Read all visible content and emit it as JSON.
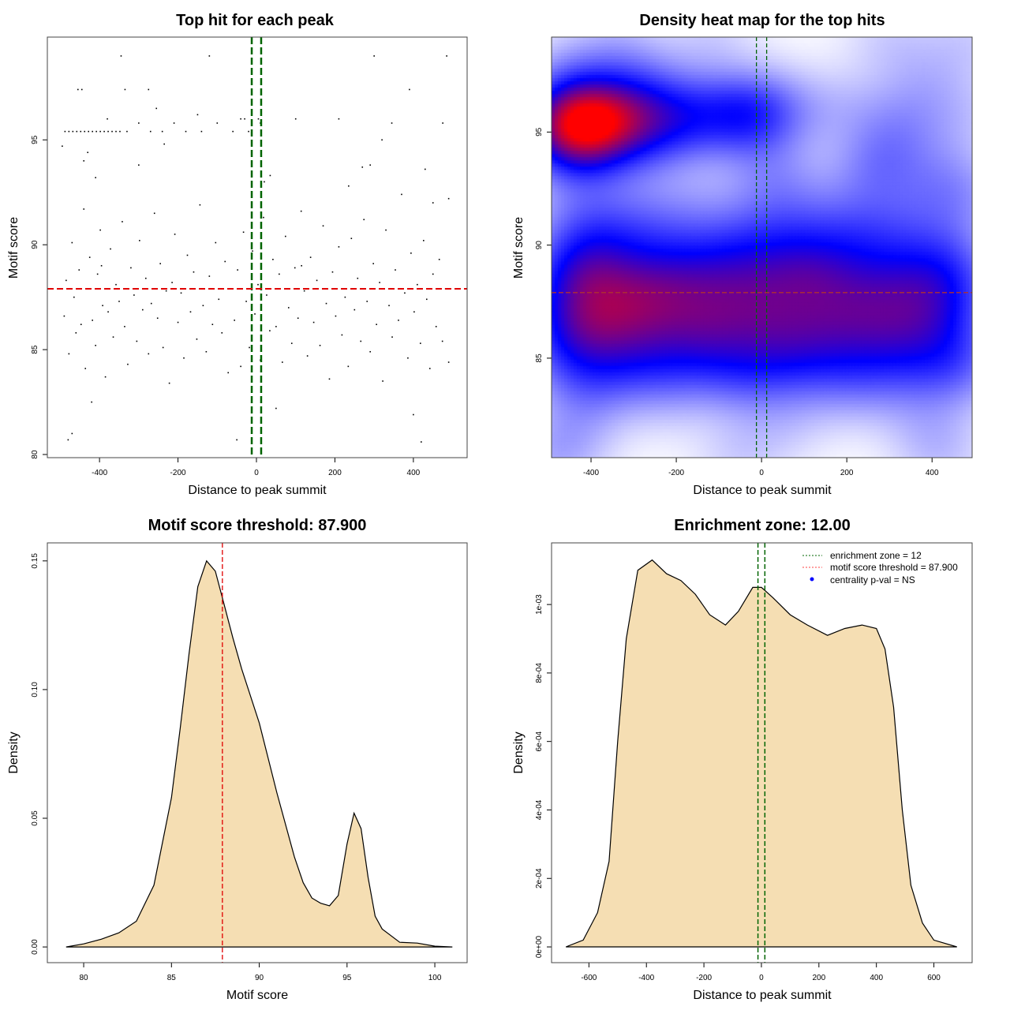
{
  "chart_data": [
    {
      "type": "scatter",
      "title": "Top hit for each peak",
      "xlabel": "Distance to peak summit",
      "ylabel": "Motif score",
      "xlim": [
        -533,
        537
      ],
      "ylim": [
        79.85,
        99.9
      ],
      "xticks": [
        -400,
        -200,
        0,
        200,
        400
      ],
      "yticks": [
        80,
        85,
        90,
        95
      ],
      "enrichment_zone": 12,
      "threshold": 87.9,
      "colors": {
        "points": "#000000",
        "zone": "#006400",
        "threshold": "#e00000"
      },
      "points": [
        [
          -488,
          95.4
        ],
        [
          -478,
          95.4
        ],
        [
          -468,
          95.4
        ],
        [
          -458,
          95.4
        ],
        [
          -448,
          95.4
        ],
        [
          -438,
          95.4
        ],
        [
          -428,
          95.4
        ],
        [
          -418,
          95.4
        ],
        [
          -408,
          95.4
        ],
        [
          -398,
          95.4
        ],
        [
          -388,
          95.4
        ],
        [
          -378,
          95.4
        ],
        [
          -368,
          95.4
        ],
        [
          -358,
          95.4
        ],
        [
          -348,
          95.4
        ],
        [
          -330,
          95.4
        ],
        [
          -300,
          95.8
        ],
        [
          -270,
          95.4
        ],
        [
          -240,
          95.4
        ],
        [
          -210,
          95.8
        ],
        [
          -180,
          95.4
        ],
        [
          -140,
          95.4
        ],
        [
          -100,
          95.8
        ],
        [
          -60,
          95.4
        ],
        [
          -20,
          95.4
        ],
        [
          10,
          95.8
        ],
        [
          -495,
          94.7
        ],
        [
          -480,
          80.7
        ],
        [
          -470,
          81
        ],
        [
          -455,
          97.4
        ],
        [
          -445,
          97.4
        ],
        [
          -440,
          94
        ],
        [
          -430,
          94.4
        ],
        [
          -420,
          82.5
        ],
        [
          -410,
          93.2
        ],
        [
          -395,
          89
        ],
        [
          -380,
          96
        ],
        [
          -345,
          99
        ],
        [
          -335,
          97.4
        ],
        [
          -300,
          93.8
        ],
        [
          -275,
          97.4
        ],
        [
          -255,
          96.5
        ],
        [
          -235,
          94.8
        ],
        [
          -150,
          96.2
        ],
        [
          -120,
          99
        ],
        [
          -50,
          80.7
        ],
        [
          -40,
          96
        ],
        [
          -30,
          96
        ],
        [
          5,
          96
        ],
        [
          20,
          93
        ],
        [
          35,
          93.3
        ],
        [
          50,
          82.2
        ],
        [
          100,
          96
        ],
        [
          115,
          89
        ],
        [
          210,
          96
        ],
        [
          235,
          92.8
        ],
        [
          270,
          93.7
        ],
        [
          290,
          93.8
        ],
        [
          300,
          99
        ],
        [
          320,
          95
        ],
        [
          345,
          95.8
        ],
        [
          390,
          97.4
        ],
        [
          400,
          81.9
        ],
        [
          420,
          80.6
        ],
        [
          430,
          93.6
        ],
        [
          450,
          92
        ],
        [
          475,
          95.8
        ],
        [
          485,
          99
        ],
        [
          490,
          92.2
        ],
        [
          -490,
          86.6
        ],
        [
          -485,
          88.3
        ],
        [
          -478,
          84.8
        ],
        [
          -470,
          90.1
        ],
        [
          -465,
          87.5
        ],
        [
          -460,
          85.8
        ],
        [
          -452,
          88.8
        ],
        [
          -447,
          86.2
        ],
        [
          -440,
          91.7
        ],
        [
          -436,
          84.1
        ],
        [
          -430,
          87.9
        ],
        [
          -425,
          89.4
        ],
        [
          -418,
          86.4
        ],
        [
          -410,
          85.2
        ],
        [
          -405,
          88.6
        ],
        [
          -398,
          90.7
        ],
        [
          -392,
          87.1
        ],
        [
          -385,
          83.7
        ],
        [
          -378,
          86.8
        ],
        [
          -372,
          89.8
        ],
        [
          -365,
          85.6
        ],
        [
          -358,
          88.1
        ],
        [
          -350,
          87.3
        ],
        [
          -342,
          91.1
        ],
        [
          -336,
          86.1
        ],
        [
          -328,
          84.3
        ],
        [
          -320,
          88.9
        ],
        [
          -312,
          87.6
        ],
        [
          -305,
          85.4
        ],
        [
          -298,
          90.2
        ],
        [
          -290,
          86.9
        ],
        [
          -282,
          88.4
        ],
        [
          -275,
          84.8
        ],
        [
          -268,
          87.2
        ],
        [
          -260,
          91.5
        ],
        [
          -252,
          86.5
        ],
        [
          -245,
          89.1
        ],
        [
          -238,
          85.1
        ],
        [
          -230,
          87.8
        ],
        [
          -222,
          83.4
        ],
        [
          -215,
          88.2
        ],
        [
          -208,
          90.5
        ],
        [
          -200,
          86.3
        ],
        [
          -192,
          87.7
        ],
        [
          -185,
          84.6
        ],
        [
          -176,
          89.5
        ],
        [
          -168,
          86.8
        ],
        [
          -160,
          88.7
        ],
        [
          -152,
          85.5
        ],
        [
          -144,
          91.9
        ],
        [
          -136,
          87.1
        ],
        [
          -128,
          84.9
        ],
        [
          -120,
          88.5
        ],
        [
          -112,
          86.2
        ],
        [
          -104,
          90.1
        ],
        [
          -96,
          87.4
        ],
        [
          -88,
          85.8
        ],
        [
          -80,
          89.2
        ],
        [
          -72,
          83.9
        ],
        [
          -64,
          87.9
        ],
        [
          -56,
          86.4
        ],
        [
          -48,
          88.8
        ],
        [
          -40,
          84.2
        ],
        [
          -33,
          90.6
        ],
        [
          -26,
          87.3
        ],
        [
          -18,
          85.1
        ],
        [
          -10,
          89.7
        ],
        [
          -4,
          86.7
        ],
        [
          4,
          88.1
        ],
        [
          10,
          84.5
        ],
        [
          18,
          91.3
        ],
        [
          26,
          87.6
        ],
        [
          34,
          85.9
        ],
        [
          42,
          89.3
        ],
        [
          50,
          86.1
        ],
        [
          58,
          88.6
        ],
        [
          66,
          84.4
        ],
        [
          74,
          90.4
        ],
        [
          82,
          87
        ],
        [
          90,
          85.3
        ],
        [
          98,
          88.9
        ],
        [
          106,
          86.5
        ],
        [
          114,
          91.6
        ],
        [
          122,
          87.8
        ],
        [
          130,
          84.7
        ],
        [
          138,
          89.4
        ],
        [
          146,
          86.3
        ],
        [
          154,
          88.3
        ],
        [
          162,
          85.2
        ],
        [
          170,
          90.9
        ],
        [
          178,
          87.2
        ],
        [
          186,
          83.6
        ],
        [
          194,
          88.7
        ],
        [
          202,
          86.6
        ],
        [
          210,
          89.9
        ],
        [
          218,
          85.7
        ],
        [
          226,
          87.5
        ],
        [
          234,
          84.2
        ],
        [
          242,
          90.3
        ],
        [
          250,
          86.9
        ],
        [
          258,
          88.4
        ],
        [
          266,
          85.4
        ],
        [
          274,
          91.2
        ],
        [
          282,
          87.3
        ],
        [
          290,
          84.9
        ],
        [
          298,
          89.1
        ],
        [
          306,
          86.2
        ],
        [
          314,
          88.2
        ],
        [
          322,
          83.5
        ],
        [
          330,
          90.7
        ],
        [
          338,
          87.1
        ],
        [
          346,
          85.6
        ],
        [
          354,
          88.8
        ],
        [
          362,
          86.4
        ],
        [
          370,
          92.4
        ],
        [
          378,
          87.7
        ],
        [
          386,
          84.6
        ],
        [
          394,
          89.6
        ],
        [
          402,
          86.8
        ],
        [
          410,
          88.1
        ],
        [
          418,
          85.3
        ],
        [
          426,
          90.2
        ],
        [
          434,
          87.4
        ],
        [
          442,
          84.1
        ],
        [
          450,
          88.6
        ],
        [
          458,
          86.1
        ],
        [
          466,
          89.3
        ],
        [
          474,
          85.4
        ],
        [
          482,
          87.9
        ],
        [
          490,
          84.4
        ]
      ]
    },
    {
      "type": "heatmap",
      "title": "Density heat map for the top hits",
      "xlabel": "Distance to peak summit",
      "ylabel": "Motif score",
      "xlim": [
        -492.6,
        494
      ],
      "ylim": [
        80.6,
        99.2
      ],
      "xticks": [
        -400,
        -200,
        0,
        200,
        400
      ],
      "yticks": [
        85,
        90,
        95
      ],
      "enrichment_zone": 12,
      "threshold": 87.9,
      "source": "2D kernel density of the top-hit points",
      "colors": {
        "low": "#ffffff",
        "mid": "#0000ff",
        "high": "#ff0000",
        "zone": "#006400",
        "threshold": "#b03030"
      }
    },
    {
      "type": "area",
      "title": "Motif score threshold: 87.900",
      "xlabel": "Motif score",
      "ylabel": "Density",
      "xlim": [
        77.93,
        101.84
      ],
      "ylim": [
        -0.0061,
        0.157
      ],
      "xticks": [
        80,
        85,
        90,
        95,
        100
      ],
      "yticks": [
        0.0,
        0.05,
        0.1,
        0.15
      ],
      "ytick_labels": [
        "0.00",
        "0.05",
        "0.10",
        "0.15"
      ],
      "threshold": 87.9,
      "colors": {
        "fill": "#F5DEB3",
        "line": "#000000",
        "threshold": "#e00000"
      },
      "x": [
        79,
        80,
        81,
        82,
        83,
        84,
        85,
        85.5,
        86,
        86.5,
        87,
        87.5,
        88,
        88.5,
        89,
        90,
        91,
        92,
        92.5,
        93,
        93.5,
        94,
        94.5,
        95,
        95.4,
        95.8,
        96.2,
        96.6,
        97,
        98,
        99,
        100,
        101
      ],
      "y": [
        0,
        0.0012,
        0.003,
        0.0055,
        0.01,
        0.024,
        0.058,
        0.085,
        0.114,
        0.14,
        0.15,
        0.146,
        0.133,
        0.12,
        0.108,
        0.087,
        0.06,
        0.035,
        0.025,
        0.019,
        0.017,
        0.016,
        0.02,
        0.04,
        0.052,
        0.046,
        0.027,
        0.012,
        0.007,
        0.0018,
        0.0015,
        0.0003,
        0
      ]
    },
    {
      "type": "area",
      "title": "Enrichment zone: 12.00",
      "xlabel": "Distance to peak summit",
      "ylabel": "Density",
      "xlim": [
        -730,
        733
      ],
      "ylim": [
        -4.6e-05,
        0.00118
      ],
      "xticks": [
        -600,
        -400,
        -200,
        0,
        200,
        400,
        600
      ],
      "yticks": [
        0,
        0.0002,
        0.0004,
        0.0006,
        0.0008,
        0.001
      ],
      "ytick_labels": [
        "0e+00",
        "2e-04",
        "4e-04",
        "6e-04",
        "8e-04",
        "1e-03"
      ],
      "enrichment_zone": 12,
      "colors": {
        "fill": "#F5DEB3",
        "line": "#000000",
        "zone": "#006400",
        "legend_threshold": "#ff4040",
        "legend_pval": "#0000ff"
      },
      "x": [
        -680,
        -620,
        -570,
        -530,
        -500,
        -470,
        -430,
        -380,
        -330,
        -280,
        -230,
        -180,
        -125,
        -80,
        -30,
        0,
        40,
        100,
        160,
        230,
        290,
        350,
        400,
        430,
        460,
        490,
        520,
        560,
        600,
        680
      ],
      "y": [
        0,
        2e-05,
        0.0001,
        0.00025,
        0.0006,
        0.0009,
        0.0011,
        0.00113,
        0.00109,
        0.00107,
        0.00103,
        0.00097,
        0.00094,
        0.00098,
        0.00105,
        0.00105,
        0.00102,
        0.00097,
        0.00094,
        0.00091,
        0.00093,
        0.00094,
        0.00093,
        0.00087,
        0.0007,
        0.0004,
        0.00018,
        7e-05,
        2e-05,
        0
      ],
      "legend": [
        "enrichment zone = 12",
        "motif score threshold = 87.900",
        "centrality p-val = NS"
      ],
      "legend_placement": "top-right"
    }
  ]
}
